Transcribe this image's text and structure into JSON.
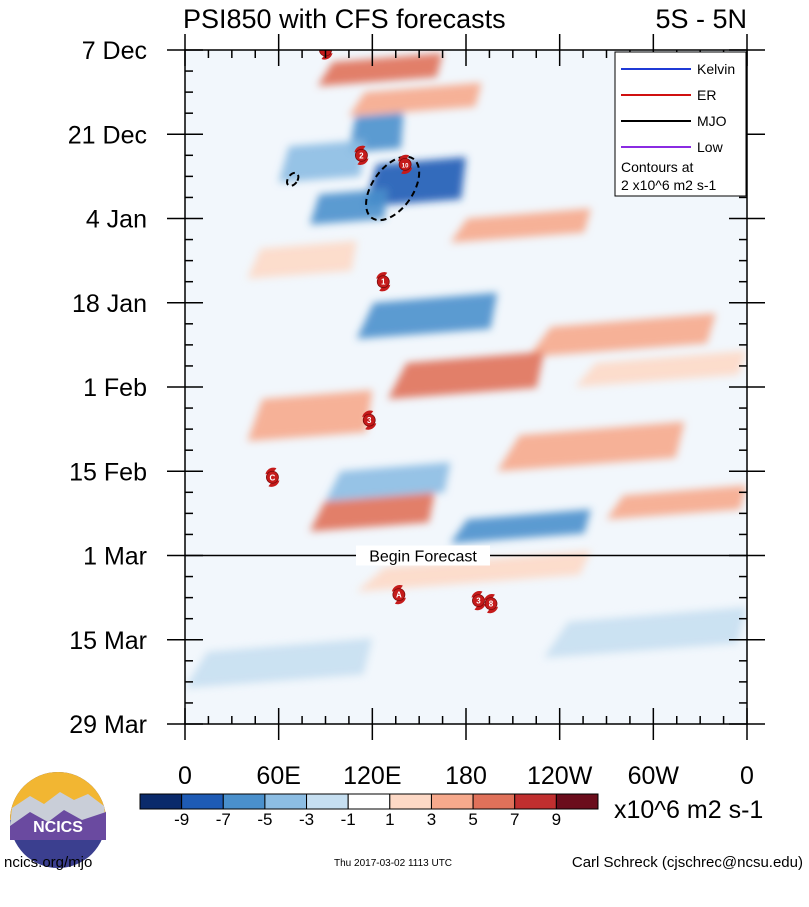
{
  "chart_data": {
    "type": "heatmap",
    "title": "PSI850 with CFS forecasts",
    "region": "5S - 5N",
    "x_ticks": [
      "0",
      "60E",
      "120E",
      "180",
      "120W",
      "60W",
      "0"
    ],
    "x_range_deg": [
      0,
      360
    ],
    "y_ticks": [
      "7 Dec",
      "21 Dec",
      "4 Jan",
      "18 Jan",
      "1 Feb",
      "15 Feb",
      "1 Mar",
      "15 Mar",
      "29 Mar"
    ],
    "y_range_days": [
      0,
      112
    ],
    "forecast_start_day": 84,
    "forecast_label": "Begin Forecast",
    "legend": {
      "items": [
        {
          "label": "Kelvin",
          "color": "#1f3ad6"
        },
        {
          "label": "ER",
          "color": "#d01010"
        },
        {
          "label": "MJO",
          "color": "#000000"
        },
        {
          "label": "Low",
          "color": "#8a2be2"
        }
      ],
      "contour_note_1": "Contours at",
      "contour_note_2": "2 x10^6 m2 s-1"
    },
    "colorbar": {
      "colors": [
        "#0a2a6b",
        "#1e5bb5",
        "#4a90cc",
        "#8cbde3",
        "#c6dff1",
        "#ffffff",
        "#fdd9c6",
        "#f6a98c",
        "#e0715a",
        "#c12f2f",
        "#6b0d1c"
      ],
      "labels": [
        "-9",
        "-7",
        "-5",
        "-3",
        "-1",
        "1",
        "3",
        "5",
        "7",
        "9"
      ],
      "units": "x10^6 m2 s-1"
    },
    "anomaly_bands": [
      {
        "lon0": 85,
        "lon1": 165,
        "day0": 2,
        "day1": 6,
        "value": 6
      },
      {
        "lon0": 105,
        "lon1": 190,
        "day0": 7,
        "day1": 11,
        "value": 4
      },
      {
        "lon0": 105,
        "lon1": 140,
        "day0": 11,
        "day1": 17,
        "value": -6
      },
      {
        "lon0": 60,
        "lon1": 115,
        "day0": 16,
        "day1": 22,
        "value": -3
      },
      {
        "lon0": 115,
        "lon1": 180,
        "day0": 19,
        "day1": 26,
        "value": -7
      },
      {
        "lon0": 80,
        "lon1": 130,
        "day0": 24,
        "day1": 29,
        "value": -5
      },
      {
        "lon0": 170,
        "lon1": 260,
        "day0": 28,
        "day1": 32,
        "value": 4
      },
      {
        "lon0": 40,
        "lon1": 110,
        "day0": 33,
        "day1": 38,
        "value": 3
      },
      {
        "lon0": 110,
        "lon1": 200,
        "day0": 42,
        "day1": 48,
        "value": -5
      },
      {
        "lon0": 220,
        "lon1": 340,
        "day0": 46,
        "day1": 51,
        "value": 4
      },
      {
        "lon0": 130,
        "lon1": 230,
        "day0": 52,
        "day1": 58,
        "value": 6
      },
      {
        "lon0": 250,
        "lon1": 360,
        "day0": 52,
        "day1": 56,
        "value": 3
      },
      {
        "lon0": 40,
        "lon1": 120,
        "day0": 58,
        "day1": 65,
        "value": 5
      },
      {
        "lon0": 200,
        "lon1": 320,
        "day0": 64,
        "day1": 70,
        "value": 5
      },
      {
        "lon0": 90,
        "lon1": 170,
        "day0": 70,
        "day1": 75,
        "value": -4
      },
      {
        "lon0": 80,
        "lon1": 160,
        "day0": 75,
        "day1": 80,
        "value": 7
      },
      {
        "lon0": 170,
        "lon1": 260,
        "day0": 78,
        "day1": 82,
        "value": -6
      },
      {
        "lon0": 270,
        "lon1": 360,
        "day0": 74,
        "day1": 78,
        "value": 4
      },
      {
        "lon0": 110,
        "lon1": 260,
        "day0": 86,
        "day1": 90,
        "value": 3
      },
      {
        "lon0": 230,
        "lon1": 360,
        "day0": 95,
        "day1": 101,
        "value": -2
      },
      {
        "lon0": 0,
        "lon1": 120,
        "day0": 100,
        "day1": 106,
        "value": -1
      }
    ],
    "mjo_contours": [
      {
        "lon": 133,
        "day": 23,
        "rlon": 13,
        "rday": 6
      },
      {
        "lon": 69,
        "day": 21.5,
        "rlon": 3,
        "rday": 1.2
      }
    ],
    "storms": [
      {
        "lon": 90,
        "day": 0,
        "label": ""
      },
      {
        "lon": 113,
        "day": 17.5,
        "label": "2"
      },
      {
        "lon": 141,
        "day": 19,
        "label": "10"
      },
      {
        "lon": 127,
        "day": 38.5,
        "label": "1"
      },
      {
        "lon": 118,
        "day": 61.5,
        "label": "3"
      },
      {
        "lon": 56,
        "day": 71,
        "label": "C"
      },
      {
        "lon": 137,
        "day": 90.5,
        "label": "A"
      },
      {
        "lon": 188,
        "day": 91.5,
        "label": "3"
      },
      {
        "lon": 196,
        "day": 92,
        "label": "8"
      }
    ]
  },
  "footer": {
    "logo_text": "NCICS",
    "url": "ncics.org/mjo",
    "timestamp": "Thu 2017-03-02 1113 UTC",
    "author": "Carl Schreck (cjschrec@ncsu.edu)"
  }
}
